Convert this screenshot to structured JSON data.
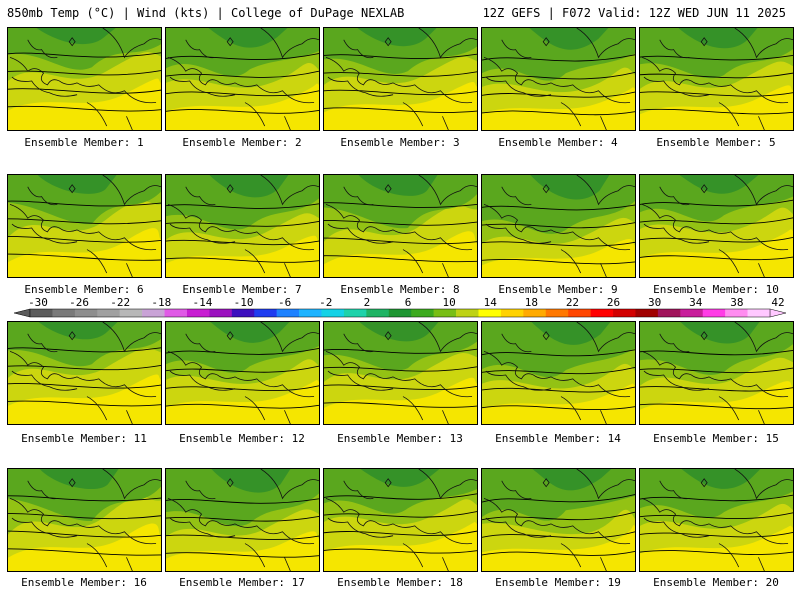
{
  "header": {
    "left": "850mb Temp (°C) | Wind (kts) | College of DuPage NEXLAB",
    "right": "12Z GEFS | F072 Valid: 12Z WED JUN 11 2025"
  },
  "members": [
    "Ensemble Member: 1",
    "Ensemble Member: 2",
    "Ensemble Member: 3",
    "Ensemble Member: 4",
    "Ensemble Member: 5",
    "Ensemble Member: 6",
    "Ensemble Member: 7",
    "Ensemble Member: 8",
    "Ensemble Member: 9",
    "Ensemble Member: 10",
    "Ensemble Member: 11",
    "Ensemble Member: 12",
    "Ensemble Member: 13",
    "Ensemble Member: 14",
    "Ensemble Member: 15",
    "Ensemble Member: 16",
    "Ensemble Member: 17",
    "Ensemble Member: 18",
    "Ensemble Member: 19",
    "Ensemble Member: 20"
  ],
  "colorbar": {
    "ticks": [
      "-30",
      "-26",
      "-22",
      "-18",
      "-14",
      "-10",
      "-6",
      "-2",
      "2",
      "6",
      "10",
      "14",
      "18",
      "22",
      "26",
      "30",
      "34",
      "38",
      "42"
    ],
    "colors": [
      "#5c5c5c",
      "#7a7a7a",
      "#8e8e8e",
      "#a0a0a0",
      "#b8b8b8",
      "#c9a3d6",
      "#e05ae6",
      "#c81ed2",
      "#9b12bf",
      "#3c0fbe",
      "#1e3cf0",
      "#1e82ff",
      "#1eb4ff",
      "#14d2e6",
      "#1ed2aa",
      "#1eb464",
      "#1e9632",
      "#3caa1e",
      "#78be14",
      "#bed214",
      "#ffff00",
      "#ffd200",
      "#ffaa00",
      "#ff7800",
      "#ff4600",
      "#ff0000",
      "#d20000",
      "#a00000",
      "#a0145a",
      "#c81e9b",
      "#ff3ce6",
      "#ff8cf0",
      "#ffc8ff"
    ]
  },
  "colors": {
    "cold": "#2f8e2a",
    "cool": "#5aa71e",
    "mild": "#93c214",
    "warm": "#ccd60f",
    "hot": "#f5e600"
  }
}
